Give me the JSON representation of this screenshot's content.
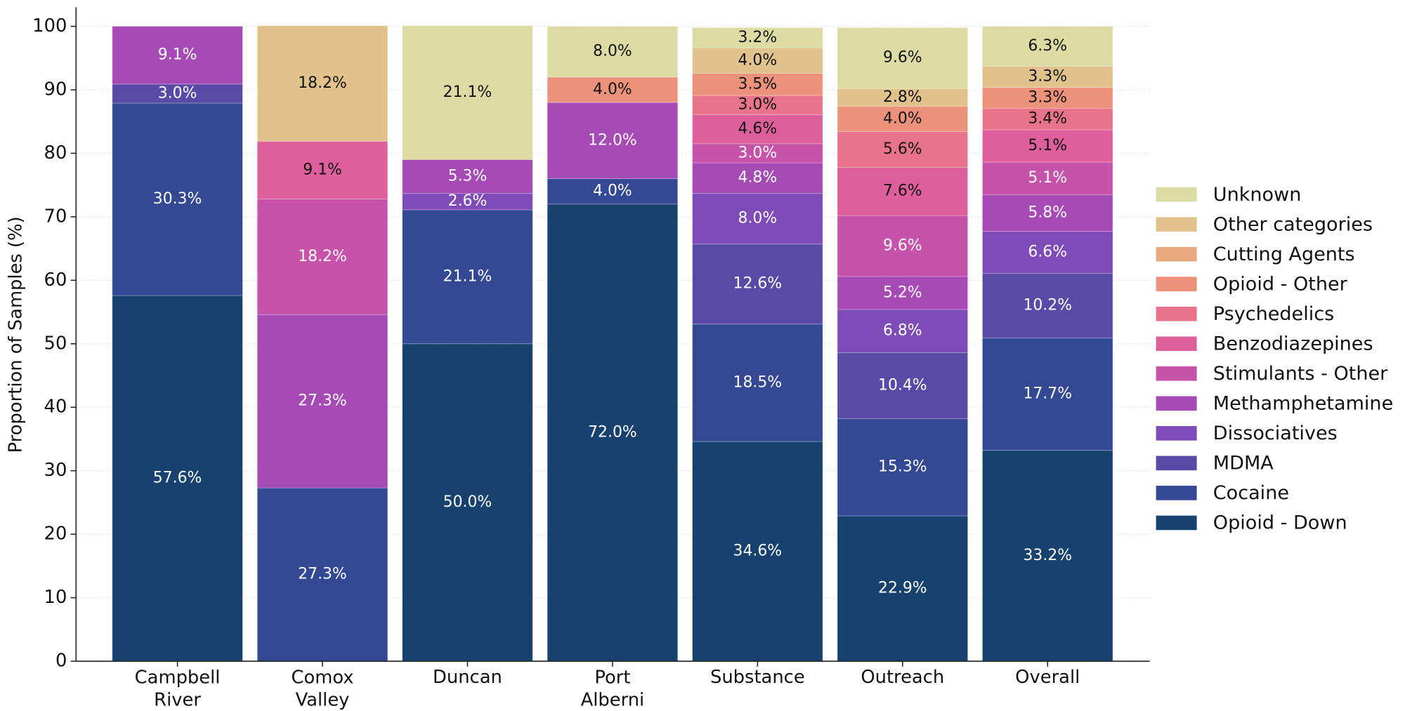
{
  "chart_data": {
    "type": "stacked-bar",
    "y_label": "Proportion of Samples (%)",
    "categories": [
      "Campbell River",
      "Comox Valley",
      "Duncan",
      "Port Alberni",
      "Substance",
      "Outreach",
      "Overall"
    ],
    "ylim": [
      0,
      103
    ],
    "yticks": [
      0,
      10,
      20,
      30,
      40,
      50,
      60,
      70,
      80,
      90,
      100
    ],
    "grid": true,
    "legend_position": "right",
    "series": [
      {
        "name": "Opioid - Down",
        "color": "#17426f",
        "values": [
          57.6,
          null,
          50.0,
          72.0,
          34.6,
          22.9,
          33.2
        ],
        "value_labels": [
          "57.6%",
          null,
          "50.0%",
          "72.0%",
          "34.6%",
          "22.9%",
          "33.2%"
        ]
      },
      {
        "name": "Cocaine",
        "color": "#344893",
        "values": [
          30.3,
          27.3,
          21.1,
          4.0,
          18.5,
          15.3,
          17.7
        ],
        "value_labels": [
          "30.3%",
          "27.3%",
          "21.1%",
          "4.0%",
          "18.5%",
          "15.3%",
          "17.7%"
        ]
      },
      {
        "name": "MDMA",
        "color": "#5a4aa8",
        "values": [
          3.0,
          null,
          null,
          null,
          12.6,
          10.4,
          10.2
        ],
        "value_labels": [
          "3.0%",
          null,
          null,
          null,
          "12.6%",
          "10.4%",
          "10.2%"
        ]
      },
      {
        "name": "Dissociatives",
        "color": "#7f4bb8",
        "values": [
          null,
          null,
          2.6,
          null,
          8.0,
          6.8,
          6.6
        ],
        "value_labels": [
          null,
          null,
          "2.6%",
          null,
          "8.0%",
          "6.8%",
          "6.6%"
        ]
      },
      {
        "name": "Methamphetamine",
        "color": "#a64ab6",
        "values": [
          9.1,
          27.3,
          5.3,
          12.0,
          4.8,
          5.2,
          5.8
        ],
        "value_labels": [
          "9.1%",
          "27.3%",
          "5.3%",
          "12.0%",
          "4.8%",
          "5.2%",
          "5.8%"
        ]
      },
      {
        "name": "Stimulants - Other",
        "color": "#c752aa",
        "values": [
          null,
          18.2,
          null,
          null,
          3.0,
          9.6,
          5.1
        ],
        "value_labels": [
          null,
          "18.2%",
          null,
          null,
          "3.0%",
          "9.6%",
          "5.1%"
        ]
      },
      {
        "name": "Benzodiazepines",
        "color": "#de5f9c",
        "values": [
          null,
          9.1,
          null,
          null,
          4.6,
          7.6,
          5.1
        ],
        "value_labels": [
          null,
          "9.1%",
          null,
          null,
          "4.6%",
          "7.6%",
          "5.1%"
        ]
      },
      {
        "name": "Psychedelics",
        "color": "#e9738a",
        "values": [
          null,
          null,
          null,
          null,
          3.0,
          5.6,
          3.4
        ],
        "value_labels": [
          null,
          null,
          null,
          null,
          "3.0%",
          "5.6%",
          "3.4%"
        ]
      },
      {
        "name": "Opioid - Other",
        "color": "#ec927a",
        "values": [
          null,
          null,
          null,
          4.0,
          3.5,
          4.0,
          3.3
        ],
        "value_labels": [
          null,
          null,
          null,
          "4.0%",
          "3.5%",
          "4.0%",
          "3.3%"
        ]
      },
      {
        "name": "Cutting Agents",
        "color": "#e9aa80",
        "values": [
          null,
          null,
          null,
          null,
          null,
          null,
          null
        ],
        "value_labels": [
          null,
          null,
          null,
          null,
          null,
          null,
          null
        ]
      },
      {
        "name": "Other categories",
        "color": "#e1c28c",
        "values": [
          null,
          18.2,
          null,
          null,
          4.0,
          2.8,
          3.3
        ],
        "value_labels": [
          null,
          "18.2%",
          null,
          null,
          "4.0%",
          "2.8%",
          "3.3%"
        ]
      },
      {
        "name": "Unknown",
        "color": "#dbdba3",
        "values": [
          null,
          null,
          21.1,
          8.0,
          3.2,
          9.6,
          6.3
        ],
        "value_labels": [
          null,
          null,
          "21.1%",
          "8.0%",
          "3.2%",
          "9.6%",
          "6.3%"
        ]
      }
    ]
  }
}
